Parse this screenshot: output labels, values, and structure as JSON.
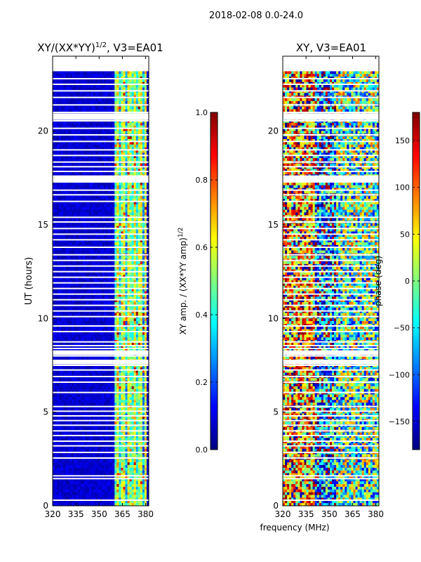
{
  "suptitle": "2018-02-08 0.0-24.0",
  "shared_xlabel": "frequency (MHz)",
  "colormap": [
    "#00007f",
    "#0000ff",
    "#007fff",
    "#00ffff",
    "#7fff7f",
    "#ffff00",
    "#ff7f00",
    "#ff0000",
    "#7f0000"
  ],
  "chart_data": [
    {
      "type": "heatmap",
      "title_main": "XY/(XX*YY)",
      "title_exp": "1/2",
      "title_suffix": ", V3=EA01",
      "xlabel": "",
      "ylabel": "UT (hours)",
      "xlim": [
        320,
        382
      ],
      "ylim": [
        0,
        24
      ],
      "xticks": [
        "320",
        "335",
        "350",
        "365",
        "380"
      ],
      "yticks": [
        "0",
        "5",
        "10",
        "15",
        "20"
      ],
      "colorbar": {
        "label_main": "XY amp. / (XX*YY amp)",
        "label_exp": "1/2",
        "range": [
          0.0,
          1.0
        ],
        "ticks": [
          "0.0",
          "0.2",
          "0.4",
          "0.6",
          "0.8",
          "1.0"
        ]
      },
      "flagged_ut_hours": [
        0.3,
        1.45,
        1.6,
        2.55,
        2.85,
        3.2,
        3.45,
        3.75,
        4.0,
        4.3,
        4.55,
        4.8,
        5.05,
        5.3,
        6.05,
        6.6,
        6.9,
        7.25,
        7.5,
        7.7,
        8.0,
        8.4,
        8.55,
        8.75,
        9.3,
        9.6,
        10.1,
        10.4,
        10.7,
        11.0,
        11.3,
        11.6,
        11.9,
        12.2,
        12.5,
        12.8,
        13.1,
        13.4,
        13.8,
        14.2,
        14.5,
        14.8,
        15.15,
        15.4,
        16.25,
        16.6,
        16.85,
        17.35,
        17.6,
        17.85,
        18.1,
        18.35,
        18.7,
        19.0,
        19.45,
        19.8,
        20.15,
        20.55,
        20.85,
        21.0,
        21.4,
        21.8,
        22.15,
        22.5,
        22.8
      ],
      "flagged_ut_ranges": [
        [
          7.55,
          7.8
        ],
        [
          8.05,
          8.3
        ],
        [
          17.25,
          17.6
        ],
        [
          20.6,
          20.95
        ]
      ]
    },
    {
      "type": "heatmap",
      "title": "XY, V3=EA01",
      "xlabel": "",
      "ylabel": "",
      "xlim": [
        320,
        382
      ],
      "ylim": [
        0,
        24
      ],
      "xticks": [
        "320",
        "335",
        "350",
        "365",
        "380"
      ],
      "yticks": [
        "0",
        "5",
        "10",
        "15",
        "20"
      ],
      "colorbar": {
        "label": "phase (deg)",
        "range": [
          -180,
          180
        ],
        "ticks": [
          "−150",
          "−100",
          "−50",
          "0",
          "50",
          "100",
          "150"
        ]
      },
      "flagged_ut_hours": [
        0.3,
        1.45,
        1.6,
        2.55,
        2.85,
        3.2,
        3.45,
        3.75,
        4.0,
        4.3,
        4.55,
        4.8,
        5.05,
        5.3,
        6.05,
        6.6,
        6.9,
        7.25,
        7.5,
        7.7,
        8.0,
        8.4,
        8.55,
        8.75,
        9.3,
        9.6,
        10.1,
        10.4,
        10.7,
        11.0,
        11.3,
        11.6,
        11.9,
        12.2,
        12.5,
        12.8,
        13.1,
        13.4,
        13.8,
        14.2,
        14.5,
        14.8,
        15.15,
        15.4,
        16.25,
        16.6,
        16.85,
        17.35,
        17.6,
        17.85,
        18.1,
        18.35,
        18.7,
        19.0,
        19.45,
        19.8,
        20.15,
        20.55,
        20.85,
        21.0,
        21.4,
        21.8,
        22.15,
        22.5,
        22.8
      ],
      "flagged_ut_ranges": [
        [
          7.55,
          7.8
        ],
        [
          8.05,
          8.3
        ],
        [
          17.25,
          17.6
        ],
        [
          20.6,
          20.95
        ]
      ]
    }
  ]
}
